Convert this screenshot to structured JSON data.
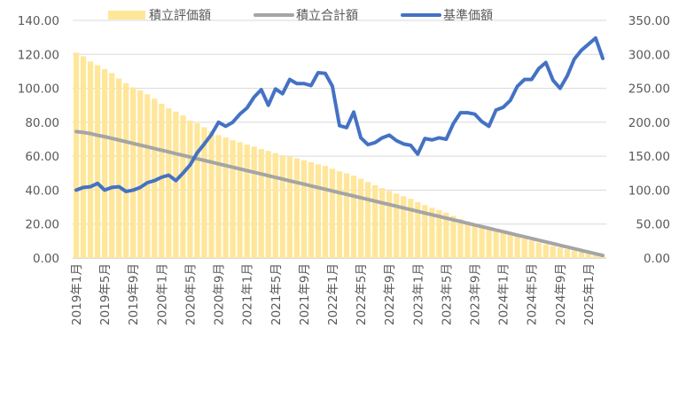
{
  "chart_data": {
    "type": "bar+line",
    "title": "",
    "legend": {
      "position": "top",
      "entries": [
        {
          "name": "積立評価額",
          "kind": "bar",
          "color": "#ffe699"
        },
        {
          "name": "積立合計額",
          "kind": "line",
          "color": "#a5a5a5"
        },
        {
          "name": "基準価額",
          "kind": "line",
          "color": "#4472c4"
        }
      ]
    },
    "categories": [
      "2019年1月",
      "2019年2月",
      "2019年3月",
      "2019年4月",
      "2019年5月",
      "2019年6月",
      "2019年7月",
      "2019年8月",
      "2019年9月",
      "2019年10月",
      "2019年11月",
      "2019年12月",
      "2020年1月",
      "2020年2月",
      "2020年3月",
      "2020年4月",
      "2020年5月",
      "2020年6月",
      "2020年7月",
      "2020年8月",
      "2020年9月",
      "2020年10月",
      "2020年11月",
      "2020年12月",
      "2021年1月",
      "2021年2月",
      "2021年3月",
      "2021年4月",
      "2021年5月",
      "2021年6月",
      "2021年7月",
      "2021年8月",
      "2021年9月",
      "2021年10月",
      "2021年11月",
      "2021年12月",
      "2022年1月",
      "2022年2月",
      "2022年3月",
      "2022年4月",
      "2022年5月",
      "2022年6月",
      "2022年7月",
      "2022年8月",
      "2022年9月",
      "2022年10月",
      "2022年11月",
      "2022年12月",
      "2023年1月",
      "2023年2月",
      "2023年3月",
      "2023年4月",
      "2023年5月",
      "2023年6月",
      "2023年7月",
      "2023年8月",
      "2023年9月",
      "2023年10月",
      "2023年11月",
      "2023年12月",
      "2024年1月",
      "2024年2月",
      "2024年3月",
      "2024年4月",
      "2024年5月",
      "2024年6月",
      "2024年7月",
      "2024年8月",
      "2024年9月",
      "2024年10月",
      "2024年11月",
      "2024年12月",
      "2025年1月",
      "2025年2月",
      "2025年3月"
    ],
    "x_tick_labels": [
      "2019年1月",
      "2019年5月",
      "2019年9月",
      "2020年1月",
      "2020年5月",
      "2020年9月",
      "2021年1月",
      "2021年5月",
      "2021年9月",
      "2022年1月",
      "2022年5月",
      "2022年9月",
      "2023年1月",
      "2023年5月",
      "2023年9月",
      "2024年1月",
      "2024年5月",
      "2024年9月",
      "2025年1月"
    ],
    "y_left": {
      "min": 0,
      "max": 140,
      "step": 20,
      "ticks": [
        "0.00",
        "20.00",
        "40.00",
        "60.00",
        "80.00",
        "100.00",
        "120.00",
        "140.00"
      ]
    },
    "y_right": {
      "min": 0,
      "max": 350,
      "step": 50,
      "ticks": [
        "0.00",
        "50.00",
        "100.00",
        "150.00",
        "200.00",
        "250.00",
        "300.00",
        "350.00"
      ]
    },
    "grid": true,
    "series": [
      {
        "name": "積立評価額",
        "type": "bar",
        "axis": "left",
        "values": [
          121.0,
          118.9,
          115.8,
          113.6,
          111.3,
          109.0,
          105.8,
          103.0,
          100.5,
          98.8,
          96.5,
          93.9,
          90.9,
          88.2,
          86.3,
          84.0,
          81.0,
          79.4,
          77.0,
          74.8,
          72.4,
          71.0,
          69.4,
          68.2,
          66.8,
          65.6,
          64.2,
          63.1,
          61.8,
          60.5,
          59.6,
          58.7,
          57.6,
          56.5,
          55.2,
          54.3,
          52.6,
          51.1,
          49.9,
          48.6,
          46.7,
          44.8,
          42.9,
          41.2,
          39.5,
          38.0,
          36.4,
          34.9,
          32.9,
          31.2,
          29.6,
          28.2,
          26.7,
          24.8,
          23.0,
          21.5,
          20.2,
          19.1,
          17.8,
          16.5,
          15.2,
          14.0,
          12.8,
          11.4,
          10.3,
          9.0,
          8.0,
          7.0,
          6.1,
          5.2,
          4.4,
          3.5,
          2.7,
          1.7,
          0.8
        ]
      },
      {
        "name": "積立合計額",
        "type": "line",
        "axis": "left",
        "values": [
          74.5,
          74.0,
          73.3,
          72.3,
          71.5,
          70.5,
          69.5,
          68.5,
          67.5,
          66.5,
          65.5,
          64.5,
          63.5,
          62.5,
          61.5,
          60.5,
          59.5,
          58.5,
          57.5,
          56.5,
          55.5,
          54.5,
          53.5,
          52.5,
          51.5,
          50.5,
          49.5,
          48.5,
          47.5,
          46.5,
          45.5,
          44.5,
          43.5,
          42.5,
          41.5,
          40.5,
          39.5,
          38.5,
          37.5,
          36.5,
          35.5,
          34.5,
          33.5,
          32.5,
          31.5,
          30.5,
          29.5,
          28.5,
          27.5,
          26.5,
          25.5,
          24.5,
          23.5,
          22.5,
          21.5,
          20.5,
          19.5,
          18.5,
          17.5,
          16.5,
          15.5,
          14.5,
          13.5,
          12.5,
          11.5,
          10.5,
          9.5,
          8.5,
          7.5,
          6.5,
          5.5,
          4.5,
          3.5,
          2.5,
          1.5
        ]
      },
      {
        "name": "基準価額",
        "type": "line",
        "axis": "right",
        "values": [
          100,
          104,
          105,
          110,
          100,
          104,
          105,
          98,
          100,
          104,
          111,
          114,
          119,
          122,
          114,
          125,
          137,
          155,
          168,
          182,
          200,
          194,
          200,
          212,
          221,
          237,
          248,
          225,
          249,
          242,
          263,
          257,
          257,
          254,
          273,
          272,
          253,
          195,
          192,
          215,
          177,
          167,
          170,
          177,
          181,
          173,
          168,
          166,
          153,
          176,
          174,
          177,
          175,
          198,
          214,
          214,
          212,
          201,
          194,
          218,
          222,
          232,
          253,
          263,
          263,
          279,
          288,
          262,
          250,
          268,
          293,
          306,
          315,
          324,
          294
        ]
      }
    ]
  }
}
